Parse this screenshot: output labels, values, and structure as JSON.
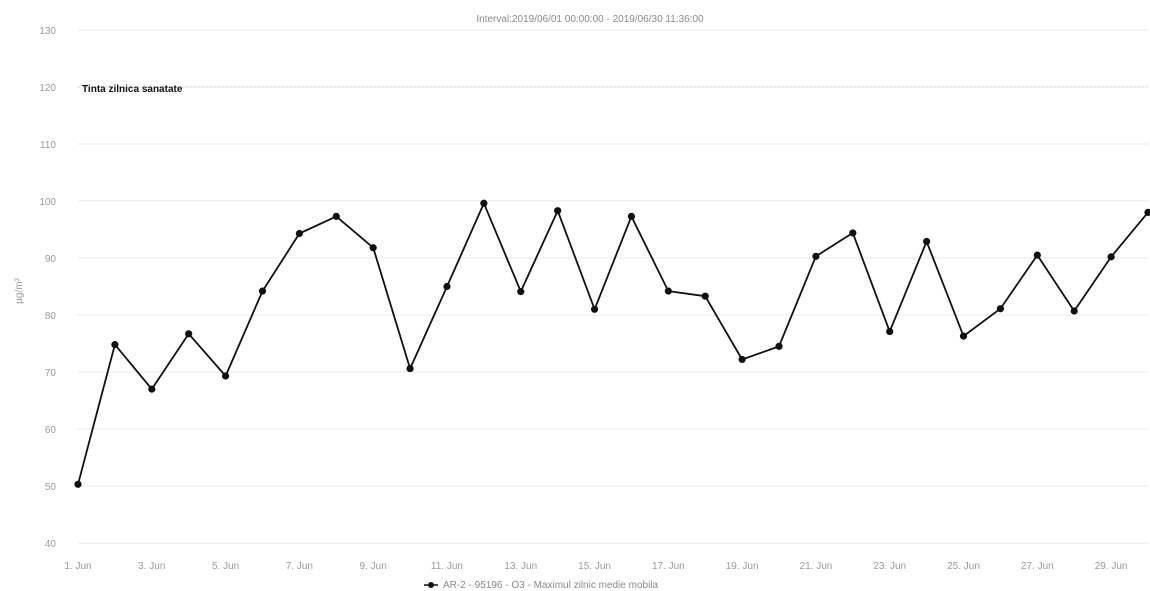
{
  "chart_data": {
    "type": "line",
    "title": "",
    "subtitle": "Interval:2019/06/01 00:00:00 - 2019/06/30 11:36:00",
    "xlabel": "",
    "ylabel": "µg/m³",
    "ylim": [
      40,
      130
    ],
    "yticks": [
      40,
      50,
      60,
      70,
      80,
      90,
      100,
      110,
      120,
      130
    ],
    "x": [
      "1. Jun",
      "2. Jun",
      "3. Jun",
      "4. Jun",
      "5. Jun",
      "6. Jun",
      "7. Jun",
      "8. Jun",
      "9. Jun",
      "10. Jun",
      "11. Jun",
      "12. Jun",
      "13. Jun",
      "14. Jun",
      "15. Jun",
      "16. Jun",
      "17. Jun",
      "18. Jun",
      "19. Jun",
      "20. Jun",
      "21. Jun",
      "22. Jun",
      "23. Jun",
      "24. Jun",
      "25. Jun",
      "26. Jun",
      "27. Jun",
      "28. Jun",
      "29. Jun",
      "30. Jun"
    ],
    "xtick_labels": [
      "1. Jun",
      "3. Jun",
      "5. Jun",
      "7. Jun",
      "9. Jun",
      "11. Jun",
      "13. Jun",
      "15. Jun",
      "17. Jun",
      "19. Jun",
      "21. Jun",
      "23. Jun",
      "25. Jun",
      "27. Jun",
      "29. Jun"
    ],
    "series": [
      {
        "name": "AR-2 - 95196 - O3 - Maximul zilnic medie mobila",
        "color": "#111111",
        "values": [
          50.3,
          74.8,
          67.0,
          76.7,
          69.3,
          84.2,
          94.3,
          97.3,
          91.8,
          70.6,
          85.0,
          99.6,
          84.1,
          98.3,
          81.0,
          97.3,
          84.2,
          83.3,
          72.2,
          74.5,
          90.3,
          94.4,
          77.1,
          92.9,
          76.3,
          81.1,
          90.5,
          80.7,
          90.2,
          98.0
        ]
      }
    ],
    "annotations": [
      {
        "text": "Tinta zilnica sanatate",
        "value": 120
      }
    ],
    "grid": true,
    "legend": "bottom-center"
  }
}
